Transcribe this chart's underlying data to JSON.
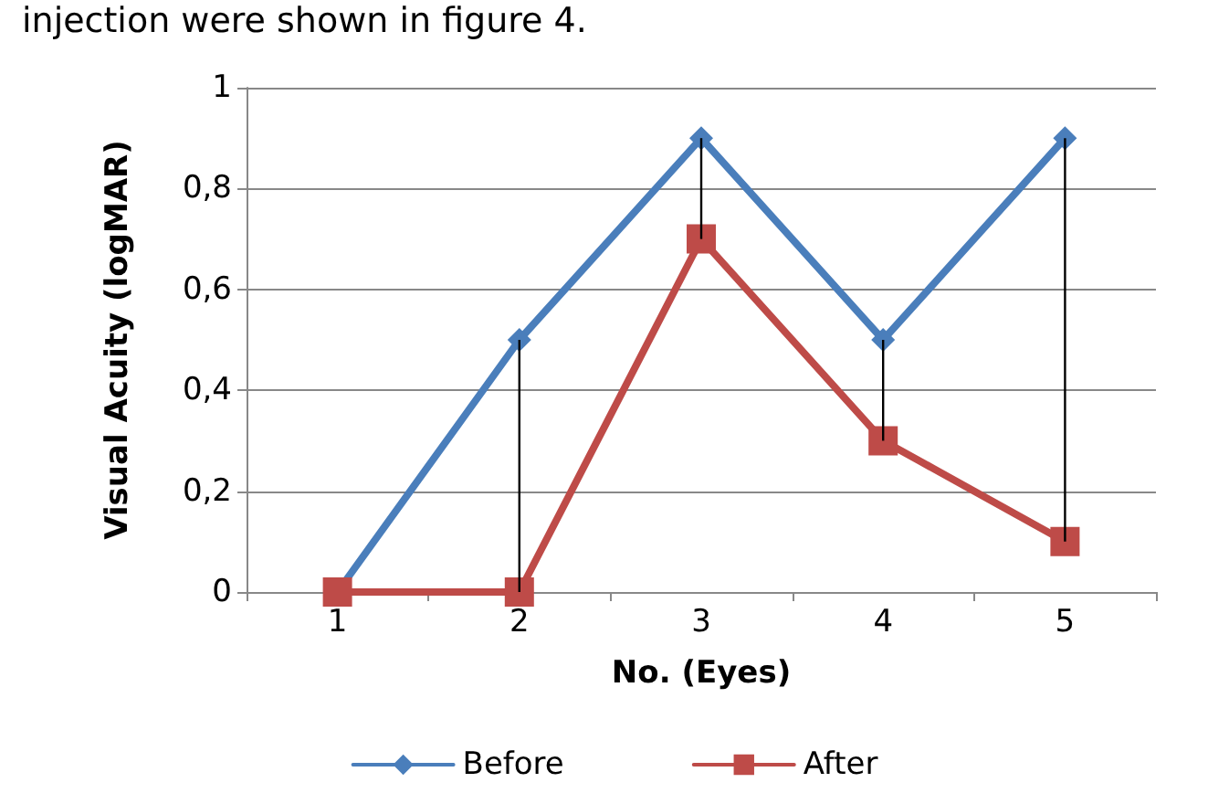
{
  "chart_data": {
    "type": "line",
    "xlabel": "No. (Eyes)",
    "ylabel": "Visual Acuity (logMAR)",
    "annotations": [
      "injection were shown in figure 4."
    ],
    "categories": [
      "1",
      "2",
      "3",
      "4",
      "5"
    ],
    "series": [
      {
        "name": "Before",
        "color": "#4a7ebb",
        "marker": "diamond",
        "values": [
          0,
          0.5,
          0.9,
          0.5,
          0.9
        ]
      },
      {
        "name": "After",
        "color": "#be4b48",
        "marker": "square",
        "values": [
          0,
          0,
          0.7,
          0.3,
          0.1
        ],
        "errors": [
          null,
          [
            0,
            0.5
          ],
          [
            0.7,
            0.9
          ],
          [
            0.3,
            0.5
          ],
          [
            0.1,
            0.9
          ]
        ]
      }
    ],
    "ylim": [
      0,
      1
    ],
    "yticks": [
      0,
      {
        "value": 0.2,
        "label": "0,2"
      },
      {
        "value": 0.4,
        "label": "0,4"
      },
      {
        "value": 0.6,
        "label": "0,6"
      },
      {
        "value": 0.8,
        "label": "0,8"
      },
      1
    ],
    "grid": "y",
    "legend": "bottom",
    "line_style": "solid"
  }
}
